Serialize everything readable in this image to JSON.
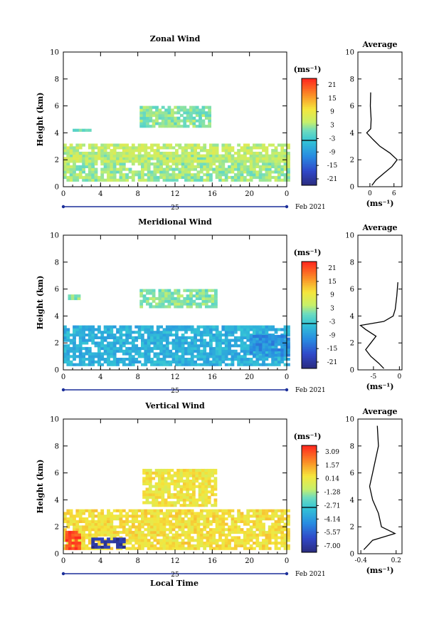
{
  "figure": {
    "date_label": "Feb 2021",
    "day_label": "25",
    "xlabel": "Local Time",
    "colors": {
      "low": "#2a2a7a",
      "mid": "#33c3d6",
      "midhigh": "#c7ef6a",
      "high": "#ff2a1e",
      "axis": "#000000",
      "date_bar": "#1c2f9a"
    }
  },
  "chart_data": [
    {
      "type": "heatmap",
      "title": "Zonal Wind",
      "ylabel": "Height (km)",
      "xlabel": "",
      "x_ticks": [
        "0",
        "4",
        "8",
        "12",
        "16",
        "20",
        "0"
      ],
      "y_ticks": [
        "0",
        "2",
        "4",
        "6",
        "8",
        "10"
      ],
      "xlim": [
        0,
        24
      ],
      "ylim": [
        0,
        10
      ],
      "colorbar": {
        "unit": "(ms⁻¹)",
        "tick_labels": [
          "21",
          "15",
          "9",
          "3",
          "-3",
          "-9",
          "-15",
          "-21"
        ],
        "range": [
          -24,
          24
        ]
      },
      "regions": [
        {
          "t": [
            0,
            24
          ],
          "h": [
            0.4,
            2.4
          ],
          "v": 3
        },
        {
          "t": [
            0,
            24
          ],
          "h": [
            1.8,
            3.2
          ],
          "v": 5
        },
        {
          "t": [
            8.2,
            15.8
          ],
          "h": [
            4.4,
            6.0
          ],
          "v": 2
        },
        {
          "t": [
            1,
            3
          ],
          "h": [
            4.1,
            4.3
          ],
          "v": 1
        }
      ],
      "average": {
        "title": "Average",
        "xlabel": "(ms⁻¹)",
        "x_ticks": [
          "0",
          "6"
        ],
        "xlim": [
          -3,
          8
        ],
        "ylim": [
          0,
          10
        ],
        "y_ticks": [
          "0",
          "2",
          "4",
          "6",
          "8",
          "10"
        ],
        "profile": [
          {
            "h": 0.1,
            "v": 0.5
          },
          {
            "h": 0.5,
            "v": 1.5
          },
          {
            "h": 1.0,
            "v": 3.5
          },
          {
            "h": 1.5,
            "v": 5.5
          },
          {
            "h": 2.0,
            "v": 6.8
          },
          {
            "h": 2.5,
            "v": 5.0
          },
          {
            "h": 3.0,
            "v": 2.5
          },
          {
            "h": 3.5,
            "v": 0.8
          },
          {
            "h": 4.0,
            "v": -0.8
          },
          {
            "h": 4.3,
            "v": 0.2
          },
          {
            "h": 5.0,
            "v": 0.3
          },
          {
            "h": 6.0,
            "v": 0.1
          },
          {
            "h": 7.0,
            "v": 0.2
          }
        ]
      }
    },
    {
      "type": "heatmap",
      "title": "Meridional Wind",
      "ylabel": "Height (km)",
      "xlabel": "",
      "x_ticks": [
        "0",
        "4",
        "8",
        "12",
        "16",
        "20",
        "0"
      ],
      "y_ticks": [
        "0",
        "2",
        "4",
        "6",
        "8",
        "10"
      ],
      "xlim": [
        0,
        24
      ],
      "ylim": [
        0,
        10
      ],
      "colorbar": {
        "unit": "(ms⁻¹)",
        "tick_labels": [
          "21",
          "15",
          "9",
          "3",
          "-3",
          "-9",
          "-15",
          "-21"
        ],
        "range": [
          -24,
          24
        ]
      },
      "regions": [
        {
          "t": [
            0,
            24
          ],
          "h": [
            0.3,
            3.2
          ],
          "v": -6
        },
        {
          "t": [
            20,
            24
          ],
          "h": [
            1.0,
            2.6
          ],
          "v": -10
        },
        {
          "t": [
            8.2,
            16.5
          ],
          "h": [
            4.6,
            6.0
          ],
          "v": 2
        },
        {
          "t": [
            0.5,
            1.8
          ],
          "h": [
            5.2,
            5.6
          ],
          "v": 2
        }
      ],
      "average": {
        "title": "Average",
        "xlabel": "(ms⁻¹)",
        "x_ticks": [
          "-5",
          "0"
        ],
        "xlim": [
          -8,
          0.5
        ],
        "ylim": [
          0,
          10
        ],
        "y_ticks": [
          "0",
          "2",
          "4",
          "6",
          "8",
          "10"
        ],
        "profile": [
          {
            "h": 0.1,
            "v": -3.0
          },
          {
            "h": 0.5,
            "v": -4.0
          },
          {
            "h": 1.0,
            "v": -5.5
          },
          {
            "h": 1.5,
            "v": -6.5
          },
          {
            "h": 2.0,
            "v": -5.5
          },
          {
            "h": 2.5,
            "v": -4.5
          },
          {
            "h": 3.0,
            "v": -6.5
          },
          {
            "h": 3.3,
            "v": -7.5
          },
          {
            "h": 3.6,
            "v": -3.0
          },
          {
            "h": 4.0,
            "v": -1.2
          },
          {
            "h": 4.5,
            "v": -0.8
          },
          {
            "h": 5.5,
            "v": -0.5
          },
          {
            "h": 6.5,
            "v": -0.3
          }
        ]
      }
    },
    {
      "type": "heatmap",
      "title": "Vertical Wind",
      "ylabel": "Height (km)",
      "xlabel": "Local Time",
      "x_ticks": [
        "0",
        "4",
        "8",
        "12",
        "16",
        "20",
        "0"
      ],
      "y_ticks": [
        "0",
        "2",
        "4",
        "6",
        "8",
        "10"
      ],
      "xlim": [
        0,
        24
      ],
      "ylim": [
        0,
        10
      ],
      "colorbar": {
        "unit": "(ms⁻¹)",
        "tick_labels": [
          "3.09",
          "1.57",
          "0.14",
          "-1.28",
          "-2.71",
          "-4.14",
          "-5.57",
          "-7.00"
        ],
        "range": [
          -7.7,
          3.8
        ]
      },
      "regions": [
        {
          "t": [
            0,
            24
          ],
          "h": [
            0.3,
            3.2
          ],
          "v": 0.6
        },
        {
          "t": [
            8.5,
            16.5
          ],
          "h": [
            3.5,
            6.2
          ],
          "v": 0.4
        },
        {
          "t": [
            0.2,
            1.6
          ],
          "h": [
            0.3,
            1.5
          ],
          "v": 3.3
        },
        {
          "t": [
            3.0,
            6.5
          ],
          "h": [
            0.4,
            1.2
          ],
          "v": -7.0
        }
      ],
      "average": {
        "title": "Average",
        "xlabel": "(ms⁻¹)",
        "x_ticks": [
          "-0.4",
          "0.2"
        ],
        "xlim": [
          -0.45,
          0.3
        ],
        "ylim": [
          0,
          10
        ],
        "y_ticks": [
          "0",
          "2",
          "4",
          "6",
          "8",
          "10"
        ],
        "profile": [
          {
            "h": 0.3,
            "v": -0.35
          },
          {
            "h": 1.0,
            "v": -0.2
          },
          {
            "h": 1.5,
            "v": 0.18
          },
          {
            "h": 2.0,
            "v": -0.05
          },
          {
            "h": 3.0,
            "v": -0.1
          },
          {
            "h": 4.0,
            "v": -0.2
          },
          {
            "h": 5.0,
            "v": -0.25
          },
          {
            "h": 6.0,
            "v": -0.2
          },
          {
            "h": 7.0,
            "v": -0.15
          },
          {
            "h": 8.0,
            "v": -0.1
          },
          {
            "h": 9.5,
            "v": -0.12
          }
        ]
      }
    }
  ]
}
